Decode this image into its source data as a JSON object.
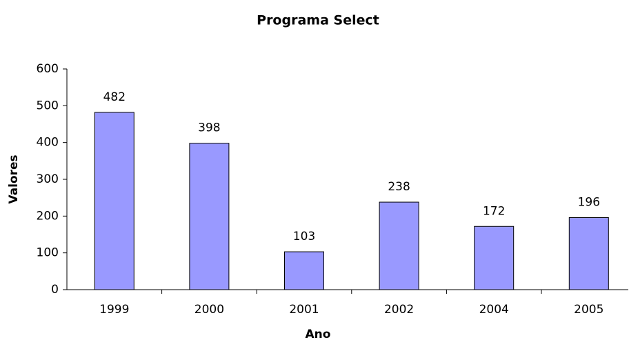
{
  "chart_data": {
    "type": "bar",
    "title": "Programa Select",
    "x_label": "Ano",
    "y_label": "Valores",
    "categories": [
      "1999",
      "2000",
      "2001",
      "2002",
      "2004",
      "2005"
    ],
    "values": [
      482,
      398,
      103,
      238,
      172,
      196
    ],
    "color": "#9999ff",
    "ylim": [
      0,
      600
    ],
    "yticks": [
      0,
      100,
      200,
      300,
      400,
      500,
      600
    ],
    "grid": false,
    "data_labels": true
  }
}
